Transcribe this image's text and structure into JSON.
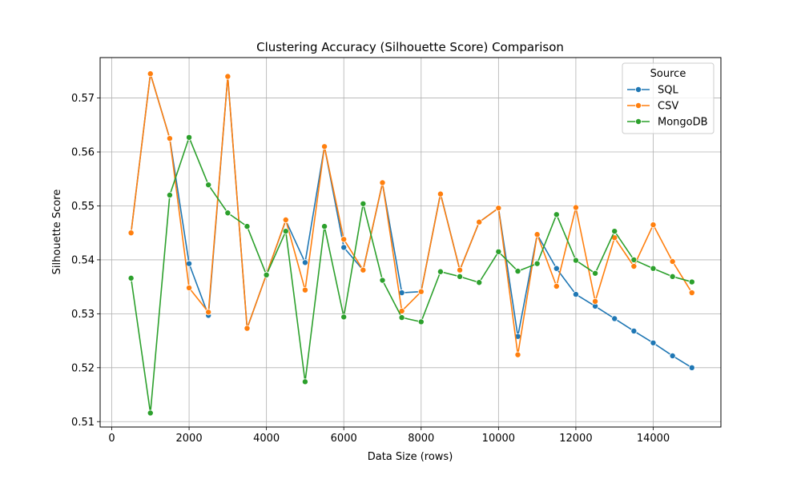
{
  "chart_data": {
    "type": "line",
    "title": "Clustering Accuracy (Silhouette Score) Comparison",
    "xlabel": "Data Size (rows)",
    "ylabel": "Silhouette Score",
    "xlim": [
      -300,
      15750
    ],
    "ylim": [
      0.509,
      0.5775
    ],
    "xticks": [
      0,
      2000,
      4000,
      6000,
      8000,
      10000,
      12000,
      14000
    ],
    "yticks": [
      0.51,
      0.52,
      0.53,
      0.54,
      0.55,
      0.56,
      0.57
    ],
    "xtick_labels": [
      "0",
      "2000",
      "4000",
      "6000",
      "8000",
      "10000",
      "12000",
      "14000"
    ],
    "ytick_labels": [
      "0.51",
      "0.52",
      "0.53",
      "0.54",
      "0.55",
      "0.56",
      "0.57"
    ],
    "grid": true,
    "legend": {
      "title": "Source",
      "placement": "top-right"
    },
    "x": [
      500,
      1000,
      1500,
      2000,
      2500,
      3000,
      3500,
      4000,
      4500,
      5000,
      5500,
      6000,
      6500,
      7000,
      7500,
      8000,
      8500,
      9000,
      9500,
      10000,
      10500,
      11000,
      11500,
      12000,
      12500,
      13000,
      13500,
      14000,
      14500,
      15000
    ],
    "series": [
      {
        "name": "SQL",
        "color": "#1f77b4",
        "values": [
          0.545,
          0.5745,
          0.5625,
          0.5393,
          0.5297,
          0.574,
          0.5273,
          0.5373,
          0.5473,
          0.5395,
          0.561,
          0.5423,
          0.5381,
          0.5542,
          0.5339,
          0.5341,
          0.5523,
          0.5381,
          0.547,
          0.5496,
          0.5258,
          0.5447,
          0.5384,
          0.5336,
          0.5314,
          0.5291,
          0.5268,
          0.5246,
          0.5222,
          0.52
        ]
      },
      {
        "name": "CSV",
        "color": "#ff7f0e",
        "values": [
          0.545,
          0.5745,
          0.5625,
          0.5348,
          0.5303,
          0.574,
          0.5273,
          0.5373,
          0.5474,
          0.5344,
          0.561,
          0.5438,
          0.5381,
          0.5543,
          0.5305,
          0.5341,
          0.5522,
          0.5381,
          0.547,
          0.5496,
          0.5224,
          0.5447,
          0.5351,
          0.5497,
          0.5323,
          0.5441,
          0.5388,
          0.5465,
          0.5397,
          0.5339
        ]
      },
      {
        "name": "MongoDB",
        "color": "#2ca02c",
        "values": [
          0.5366,
          0.5116,
          0.552,
          0.5627,
          0.5539,
          0.5487,
          0.5462,
          0.5372,
          0.5453,
          0.5174,
          0.5462,
          0.5294,
          0.5504,
          0.5362,
          0.5293,
          0.5285,
          0.5378,
          0.5369,
          0.5358,
          0.5415,
          0.5379,
          0.5393,
          0.5484,
          0.5399,
          0.5375,
          0.5453,
          0.54,
          0.5384,
          0.5369,
          0.5359
        ]
      }
    ]
  }
}
